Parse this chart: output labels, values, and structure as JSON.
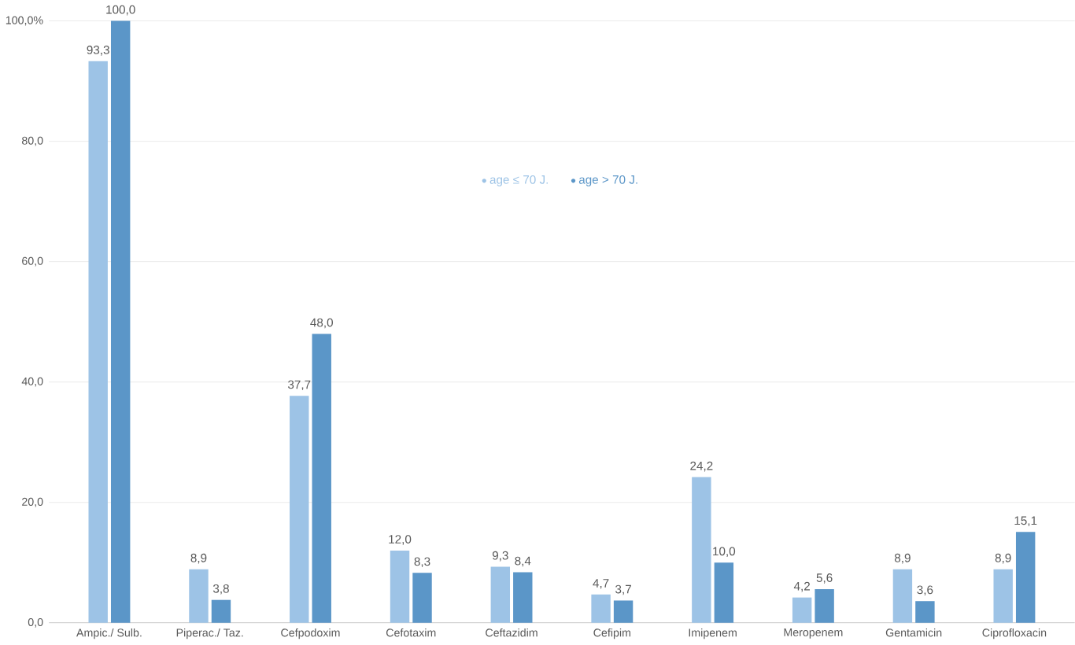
{
  "chart_data": {
    "type": "bar",
    "categories": [
      "Ampic./ Sulb.",
      "Piperac./ Taz.",
      "Cefpodoxim",
      "Cefotaxim",
      "Ceftazidim",
      "Cefipim",
      "Imipenem",
      "Meropenem",
      "Gentamicin",
      "Ciprofloxacin"
    ],
    "series": [
      {
        "name": "age ≤ 70 J.",
        "color": "#9dc3e6",
        "values": [
          93.3,
          8.9,
          37.7,
          12.0,
          9.3,
          4.7,
          24.2,
          4.2,
          8.9,
          8.9
        ],
        "value_labels": [
          "93,3",
          "8,9",
          "37,7",
          "12,0",
          "9,3",
          "4,7",
          "24,2",
          "4,2",
          "8,9",
          "8,9"
        ]
      },
      {
        "name": "age > 70 J.",
        "color": "#5b96c8",
        "values": [
          100.0,
          3.8,
          48.0,
          8.3,
          8.4,
          3.7,
          10.0,
          5.6,
          3.6,
          15.1
        ],
        "value_labels": [
          "100,0",
          "3,8",
          "48,0",
          "8,3",
          "8,4",
          "3,7",
          "10,0",
          "5,6",
          "3,6",
          "15,1"
        ]
      }
    ],
    "ylim": [
      0,
      100
    ],
    "yticks": [
      {
        "value": 0,
        "label": "0,0"
      },
      {
        "value": 20,
        "label": "20,0"
      },
      {
        "value": 40,
        "label": "40,0"
      },
      {
        "value": 60,
        "label": "60,0"
      },
      {
        "value": 80,
        "label": "80,0"
      },
      {
        "value": 100,
        "label": "100,0%"
      }
    ],
    "grid": "y",
    "legend": "top"
  }
}
